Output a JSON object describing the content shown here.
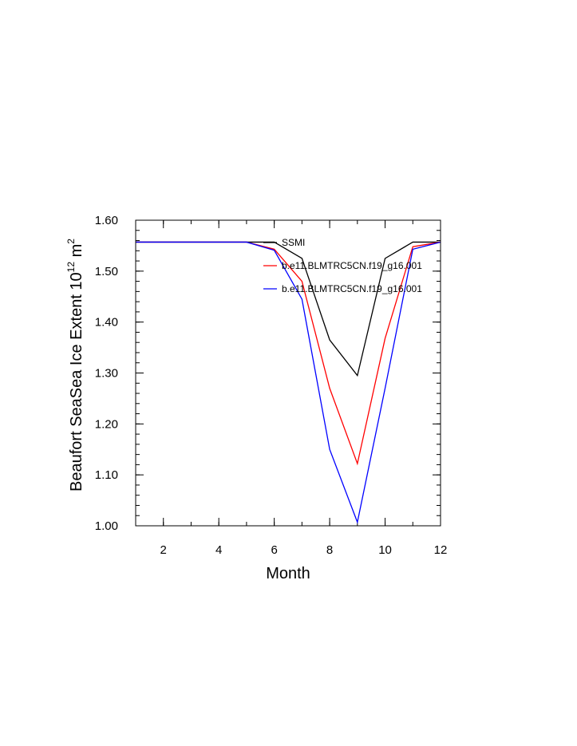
{
  "chart_data": {
    "type": "line",
    "xlabel": "Month",
    "ylabel_main": "Beaufort SeaSea Ice Extent 10",
    "ylabel_exp": "12",
    "ylabel_unit": " m",
    "ylabel_unit_exp": "2",
    "xlim": [
      1,
      12
    ],
    "ylim": [
      1.0,
      1.6
    ],
    "xticks": [
      2,
      4,
      6,
      8,
      10,
      12
    ],
    "xtick_labels": [
      "2",
      "4",
      "6",
      "8",
      "10",
      "12"
    ],
    "yticks": [
      1.0,
      1.1,
      1.2,
      1.3,
      1.4,
      1.5,
      1.6
    ],
    "ytick_labels": [
      "1.00",
      "1.10",
      "1.20",
      "1.30",
      "1.40",
      "1.50",
      "1.60"
    ],
    "grid": false,
    "legend_position": "top-right",
    "x": [
      1,
      2,
      3,
      4,
      5,
      6,
      7,
      8,
      9,
      10,
      11,
      12
    ],
    "series": [
      {
        "name": "SSMI",
        "color": "#000000",
        "values": [
          1.557,
          1.557,
          1.557,
          1.557,
          1.557,
          1.557,
          1.525,
          1.365,
          1.295,
          1.525,
          1.557,
          1.557
        ]
      },
      {
        "name": "b.e11.BLMTRC5CN.f19_g16.001",
        "color": "#ff0000",
        "values": [
          1.557,
          1.557,
          1.557,
          1.557,
          1.557,
          1.543,
          1.48,
          1.27,
          1.122,
          1.368,
          1.548,
          1.557
        ]
      },
      {
        "name": "b.e11.BLMTRC5CN.f19_g16.001",
        "color": "#0000ff",
        "values": [
          1.557,
          1.557,
          1.557,
          1.557,
          1.557,
          1.541,
          1.445,
          1.15,
          1.007,
          1.27,
          1.543,
          1.557
        ]
      }
    ]
  }
}
